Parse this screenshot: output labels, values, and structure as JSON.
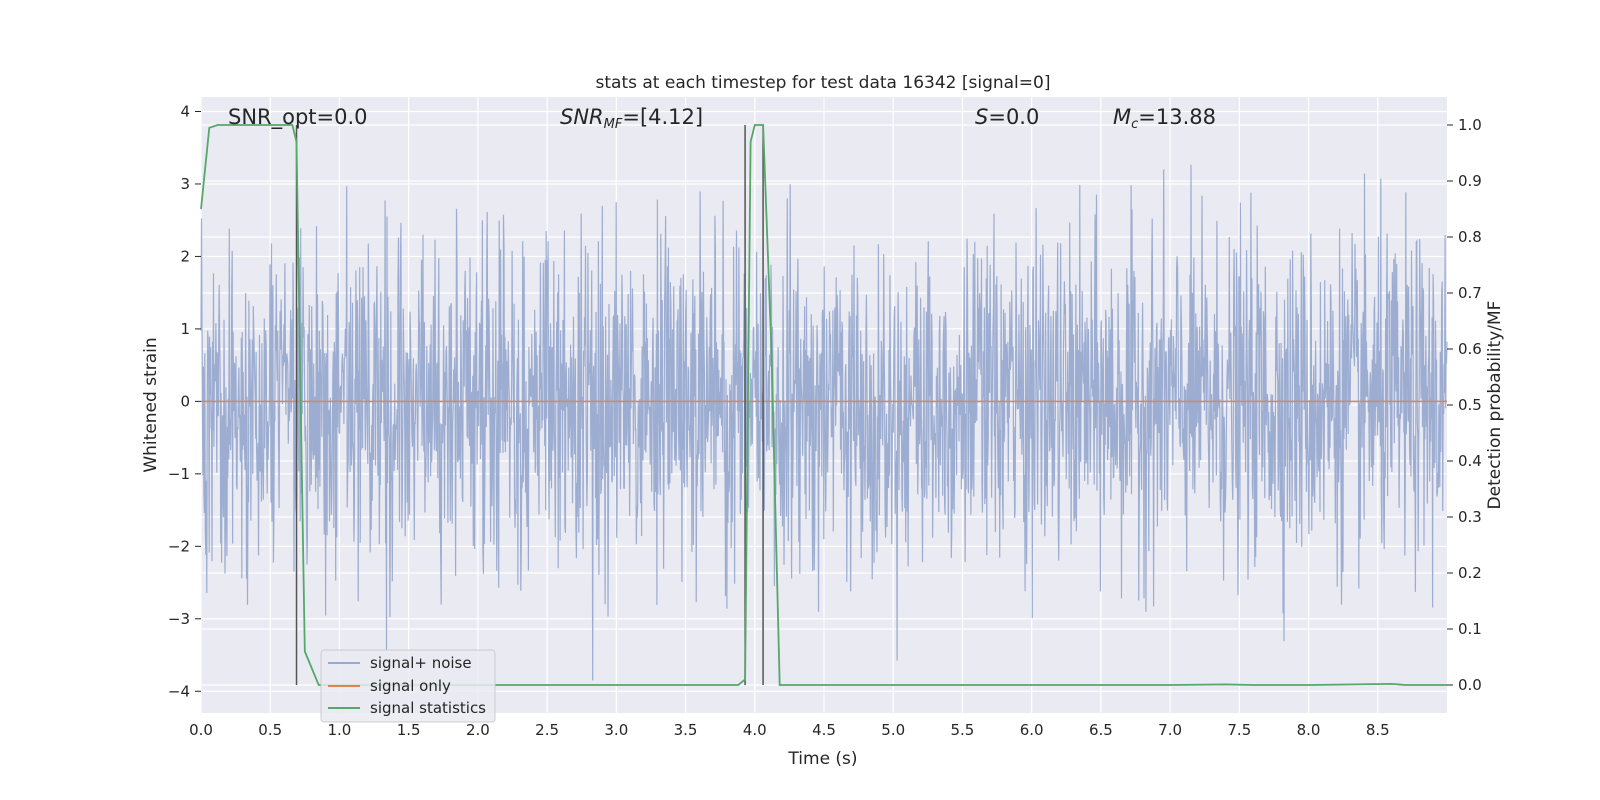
{
  "chart_data": {
    "type": "line",
    "title": "stats at each timestep for test data 16342 [signal=0]",
    "xlabel": "Time (s)",
    "ylabel": "Whitened strain",
    "y2label": "Detection probability/MF",
    "xlim": [
      0.0,
      9.0
    ],
    "ylim": [
      -4.3,
      4.2
    ],
    "y2lim": [
      -0.05,
      1.05
    ],
    "xticks": [
      "0.0",
      "0.5",
      "1.0",
      "1.5",
      "2.0",
      "2.5",
      "3.0",
      "3.5",
      "4.0",
      "4.5",
      "5.0",
      "5.5",
      "6.0",
      "6.5",
      "7.0",
      "7.5",
      "8.0",
      "8.5"
    ],
    "yticks": [
      "4",
      "3",
      "2",
      "1",
      "0",
      "−1",
      "−2",
      "−3",
      "−4"
    ],
    "y2ticks": [
      "1.0",
      "0.9",
      "0.8",
      "0.7",
      "0.6",
      "0.5",
      "0.4",
      "0.3",
      "0.2",
      "0.1",
      "0.0"
    ],
    "grid": true,
    "legend_position": "lower-left",
    "annotations": {
      "snr_opt": "SNR_opt=0.0",
      "snr_mf_base": "SNR",
      "snr_mf_sub": "MF",
      "snr_mf_rest": "=[4.12]",
      "s": "S",
      "s_rest": "=0.0",
      "mc": "M",
      "mc_sub": "c",
      "mc_rest": "=13.88"
    },
    "series": [
      {
        "name": "signal+ noise",
        "color": "#98aacf",
        "axis": "left",
        "x_range": [
          0.0,
          9.0
        ],
        "approx_envelope": {
          "typical_max": 2.2,
          "typical_min": -2.2,
          "peak_max": 3.8,
          "peak_min": -3.85
        }
      },
      {
        "name": "signal only",
        "color": "#dd8452",
        "axis": "left",
        "x": [
          0.0,
          9.0
        ],
        "y": [
          0.0,
          0.0
        ]
      },
      {
        "name": "signal statistics",
        "color": "#55a868",
        "axis": "right",
        "x": [
          0.0,
          0.06,
          0.12,
          0.2,
          0.3,
          0.4,
          0.5,
          0.6,
          0.66,
          0.69,
          0.72,
          0.75,
          0.85,
          1.0,
          2.0,
          3.0,
          3.88,
          3.93,
          3.97,
          4.0,
          4.06,
          4.12,
          4.18,
          4.5,
          5.0,
          6.0,
          7.0,
          7.4,
          7.6,
          8.0,
          8.6,
          8.7,
          9.0
        ],
        "y": [
          0.85,
          0.995,
          1.0,
          1.0,
          1.0,
          1.0,
          1.0,
          1.0,
          1.0,
          0.97,
          0.5,
          0.06,
          0.0,
          0.0,
          0.0,
          0.0,
          0.0,
          0.01,
          0.97,
          1.0,
          1.0,
          0.6,
          0.0,
          0.0,
          0.0,
          0.0,
          0.0,
          0.001,
          0.0,
          0.0,
          0.002,
          0.0,
          0.0
        ]
      }
    ],
    "vertical_markers": [
      {
        "x": 0.69,
        "color": "#555555"
      },
      {
        "x": 3.93,
        "color": "#555555"
      },
      {
        "x": 4.06,
        "color": "#555555"
      }
    ],
    "colors": {
      "plot_bg": "#eaeaf2",
      "grid": "#ffffff",
      "text": "#262626"
    }
  }
}
